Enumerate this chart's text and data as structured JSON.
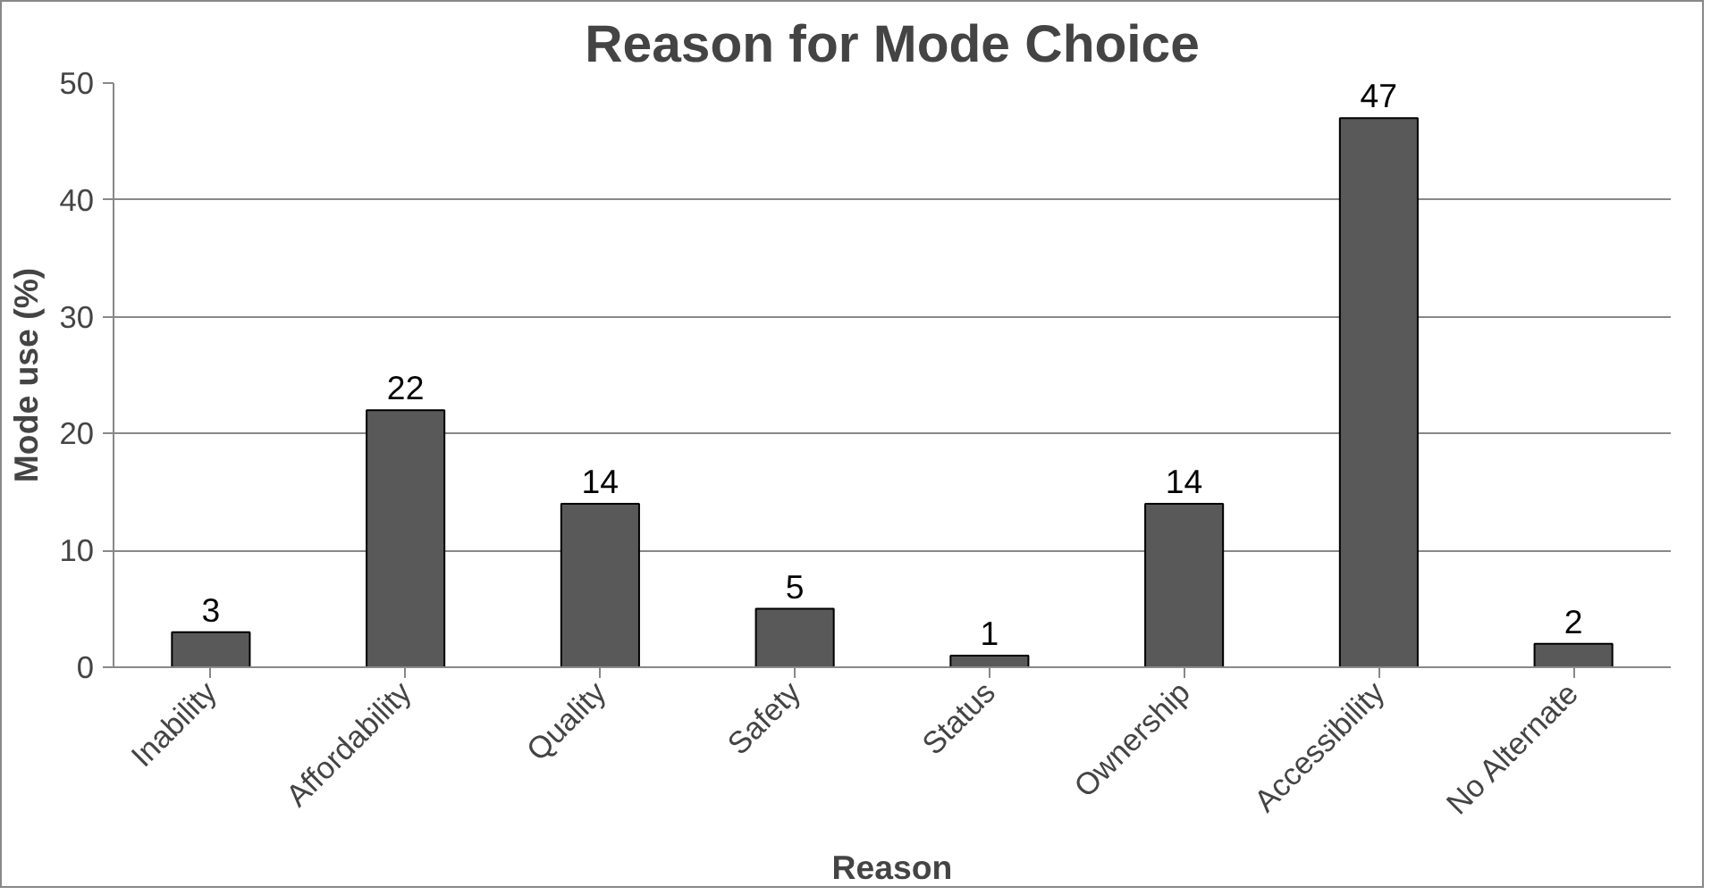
{
  "chart_data": {
    "type": "bar",
    "title": "Reason for Mode Choice",
    "xlabel": "Reason",
    "ylabel": "Mode use (%)",
    "categories": [
      "Inability",
      "Affordability",
      "Quality",
      "Safety",
      "Status",
      "Ownership",
      "Accessibility",
      "No Alternate"
    ],
    "values": [
      3,
      22,
      14,
      5,
      1,
      14,
      47,
      2
    ],
    "color": "#595959",
    "ylim": [
      0,
      50
    ],
    "yticks": [
      0,
      10,
      20,
      30,
      40,
      50
    ],
    "grid": "y",
    "data_labels": true
  }
}
